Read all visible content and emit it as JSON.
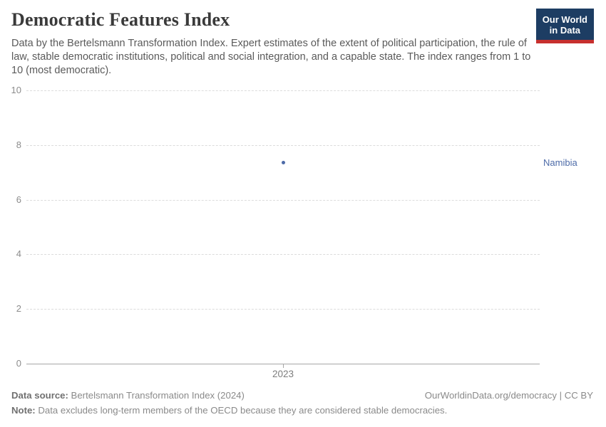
{
  "header": {
    "title": "Democratic Features Index",
    "subtitle": "Data by the Bertelsmann Transformation Index. Expert estimates of the extent of political participation, the rule of law, stable democratic institutions, political and social integration, and a capable state. The index ranges from 1 to 10 (most democratic).",
    "logo": {
      "line1": "Our World",
      "line2": "in Data",
      "bg": "#1d3d63",
      "accent": "#c7302e"
    }
  },
  "chart_data": {
    "type": "scatter",
    "x": [
      2023
    ],
    "series": [
      {
        "name": "Namibia",
        "values": [
          7.35
        ],
        "color": "#4d6ba8"
      }
    ],
    "title": "Democratic Features Index",
    "xlabel": "",
    "ylabel": "",
    "ylim": [
      0,
      10
    ],
    "yticks": [
      0,
      2,
      4,
      6,
      8,
      10
    ],
    "xticks": [
      "2023"
    ],
    "grid": "horizontal-dashed",
    "legend_position": "entity-label-right-of-point"
  },
  "footer": {
    "source_label": "Data source:",
    "source_text": " Bertelsmann Transformation Index (2024)",
    "credit": "OurWorldinData.org/democracy | CC BY",
    "note_label": "Note:",
    "note_text": " Data excludes long-term members of the OECD because they are considered stable democracies."
  }
}
